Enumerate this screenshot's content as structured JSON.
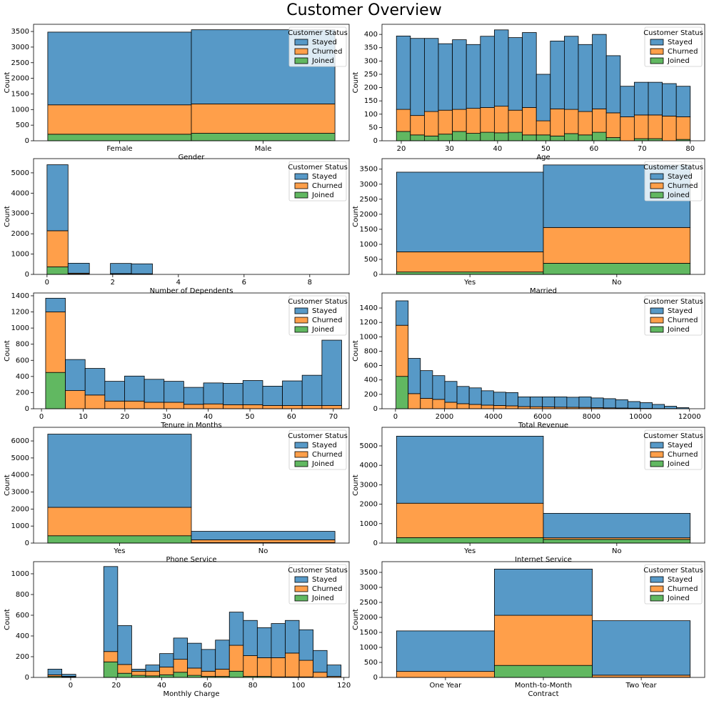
{
  "title": "Customer Overview",
  "chart_data": [
    {
      "type": "bar",
      "xlabel": "Gender",
      "ylabel": "Count",
      "legend_title": "Customer Status",
      "legend": "upper right",
      "stacked": true,
      "categories": [
        "Female",
        "Male"
      ],
      "series": [
        {
          "name": "Stayed",
          "color": "#5799c7",
          "values": [
            2330,
            2375
          ]
        },
        {
          "name": "Churned",
          "color": "#ff9f4a",
          "values": [
            940,
            940
          ]
        },
        {
          "name": "Joined",
          "color": "#61b861",
          "values": [
            210,
            240
          ]
        }
      ],
      "ylim": [
        0,
        3730
      ],
      "yticks": [
        0,
        500,
        1000,
        1500,
        2000,
        2500,
        3000,
        3500
      ]
    },
    {
      "type": "histogram",
      "xlabel": "Age",
      "ylabel": "Count",
      "legend_title": "Customer Status",
      "legend": "upper right",
      "stacked": true,
      "bins": [
        19,
        21.9,
        24.81,
        27.71,
        30.62,
        33.52,
        36.43,
        39.33,
        42.24,
        45.14,
        48.05,
        50.95,
        53.86,
        56.76,
        59.67,
        62.57,
        65.48,
        68.38,
        71.29,
        74.19,
        77.1,
        80
      ],
      "series": [
        {
          "name": "Stayed",
          "color": "#5799c7",
          "values": [
            276,
            290,
            275,
            250,
            262,
            240,
            268,
            287,
            273,
            282,
            175,
            255,
            275,
            252,
            280,
            215,
            115,
            123,
            123,
            122,
            115
          ]
        },
        {
          "name": "Churned",
          "color": "#ff9f4a",
          "values": [
            83,
            73,
            92,
            90,
            83,
            94,
            93,
            100,
            83,
            103,
            53,
            102,
            91,
            88,
            88,
            93,
            90,
            89,
            89,
            93,
            85
          ]
        },
        {
          "name": "Joined",
          "color": "#61b861",
          "values": [
            35,
            22,
            18,
            25,
            35,
            28,
            32,
            30,
            32,
            22,
            22,
            18,
            27,
            22,
            32,
            12,
            0,
            8,
            8,
            0,
            5
          ]
        }
      ],
      "xlim": [
        16,
        83
      ],
      "xticks": [
        20,
        30,
        40,
        50,
        60,
        70,
        80
      ],
      "ylim": [
        0,
        438
      ],
      "yticks": [
        0,
        50,
        100,
        150,
        200,
        250,
        300,
        350,
        400
      ]
    },
    {
      "type": "histogram",
      "xlabel": "Number of Dependents",
      "ylabel": "Count",
      "legend_title": "Customer Status",
      "legend": "upper right",
      "stacked": true,
      "bins": [
        0,
        0.64,
        1.29,
        1.93,
        2.57,
        3.21,
        3.86,
        4.5,
        5.14,
        5.79,
        6.43,
        7.07,
        7.71,
        8.36,
        9
      ],
      "series": [
        {
          "name": "Stayed",
          "color": "#5799c7",
          "values": [
            3250,
            490,
            0,
            500,
            490,
            0,
            0,
            0,
            0,
            0,
            0,
            0,
            0,
            0
          ]
        },
        {
          "name": "Churned",
          "color": "#ff9f4a",
          "values": [
            1780,
            40,
            0,
            25,
            20,
            0,
            0,
            0,
            0,
            0,
            0,
            0,
            0,
            0
          ]
        },
        {
          "name": "Joined",
          "color": "#61b861",
          "values": [
            370,
            20,
            0,
            15,
            10,
            0,
            0,
            0,
            0,
            0,
            0,
            0,
            0,
            0
          ]
        }
      ],
      "xlim": [
        -0.41,
        9.2
      ],
      "xticks": [
        0,
        2,
        4,
        6,
        8
      ],
      "ylim": [
        0,
        5700
      ],
      "yticks": [
        0,
        1000,
        2000,
        3000,
        4000,
        5000
      ]
    },
    {
      "type": "bar",
      "xlabel": "Married",
      "ylabel": "Count",
      "legend_title": "Customer Status",
      "legend": "upper right",
      "stacked": true,
      "categories": [
        "Yes",
        "No"
      ],
      "series": [
        {
          "name": "Stayed",
          "color": "#5799c7",
          "values": [
            2650,
            2080
          ]
        },
        {
          "name": "Churned",
          "color": "#ff9f4a",
          "values": [
            670,
            1190
          ]
        },
        {
          "name": "Joined",
          "color": "#61b861",
          "values": [
            80,
            370
          ]
        }
      ],
      "ylim": [
        0,
        3850
      ],
      "yticks": [
        0,
        500,
        1000,
        1500,
        2000,
        2500,
        3000,
        3500
      ]
    },
    {
      "type": "histogram",
      "xlabel": "Tenure in Months",
      "ylabel": "Count",
      "legend_title": "Customer Status",
      "legend": "upper right",
      "stacked": true,
      "bins": [
        1,
        5.73,
        10.47,
        15.2,
        19.93,
        24.67,
        29.4,
        34.13,
        38.87,
        43.6,
        48.33,
        53.07,
        57.8,
        62.53,
        67.27,
        72
      ],
      "series": [
        {
          "name": "Stayed",
          "color": "#5799c7",
          "values": [
            170,
            385,
            330,
            245,
            310,
            285,
            260,
            210,
            260,
            265,
            300,
            240,
            305,
            375,
            810
          ]
        },
        {
          "name": "Churned",
          "color": "#ff9f4a",
          "values": [
            750,
            225,
            170,
            95,
            95,
            80,
            80,
            55,
            60,
            50,
            50,
            40,
            40,
            40,
            40
          ]
        },
        {
          "name": "Joined",
          "color": "#61b861",
          "values": [
            450,
            0,
            0,
            0,
            0,
            0,
            0,
            0,
            0,
            0,
            0,
            0,
            0,
            0,
            0
          ]
        }
      ],
      "xlim": [
        -1.9,
        73.8
      ],
      "xticks": [
        0,
        10,
        20,
        30,
        40,
        50,
        60,
        70
      ],
      "ylim": [
        0,
        1435
      ],
      "yticks": [
        0,
        200,
        400,
        600,
        800,
        1000,
        1200,
        1400
      ]
    },
    {
      "type": "histogram",
      "xlabel": "Total Revenue",
      "ylabel": "Count",
      "legend_title": "Customer Status",
      "legend": "upper right",
      "stacked": true,
      "bins": [
        21,
        519,
        1017,
        1515,
        2013,
        2511,
        3009,
        3507,
        4005,
        4503,
        5001,
        5499,
        5997,
        6495,
        6993,
        7491,
        7989,
        8487,
        8985,
        9483,
        9981,
        10479,
        10977,
        11475,
        11973
      ],
      "series": [
        {
          "name": "Stayed",
          "color": "#5799c7",
          "values": [
            340,
            490,
            385,
            330,
            290,
            240,
            230,
            200,
            185,
            185,
            135,
            137,
            140,
            143,
            140,
            147,
            135,
            128,
            115,
            92,
            80,
            57,
            33,
            15
          ]
        },
        {
          "name": "Churned",
          "color": "#ff9f4a",
          "values": [
            710,
            210,
            145,
            130,
            90,
            70,
            60,
            50,
            45,
            40,
            30,
            28,
            25,
            22,
            20,
            18,
            15,
            12,
            10,
            8,
            5,
            3,
            2,
            0
          ]
        },
        {
          "name": "Joined",
          "color": "#61b861",
          "values": [
            450,
            0,
            0,
            0,
            0,
            0,
            0,
            0,
            0,
            0,
            0,
            0,
            0,
            0,
            0,
            0,
            0,
            0,
            0,
            0,
            0,
            0,
            0,
            0
          ]
        }
      ],
      "xlim": [
        -550,
        12620
      ],
      "xticks": [
        0,
        2000,
        4000,
        6000,
        8000,
        10000,
        12000
      ],
      "ylim": [
        0,
        1609
      ],
      "yticks": [
        0,
        200,
        400,
        600,
        800,
        1000,
        1200,
        1400
      ]
    },
    {
      "type": "bar",
      "xlabel": "Phone Service",
      "ylabel": "Count",
      "legend_title": "Customer Status",
      "legend": "upper right",
      "stacked": true,
      "categories": [
        "Yes",
        "No"
      ],
      "series": [
        {
          "name": "Stayed",
          "color": "#5799c7",
          "values": [
            4300,
            500
          ]
        },
        {
          "name": "Churned",
          "color": "#ff9f4a",
          "values": [
            1670,
            160
          ]
        },
        {
          "name": "Joined",
          "color": "#61b861",
          "values": [
            430,
            30
          ]
        }
      ],
      "ylim": [
        0,
        6800
      ],
      "yticks": [
        0,
        1000,
        2000,
        3000,
        4000,
        5000,
        6000
      ]
    },
    {
      "type": "bar",
      "xlabel": "Internet Service",
      "ylabel": "Count",
      "legend_title": "Customer Status",
      "legend": "upper right",
      "stacked": true,
      "categories": [
        "Yes",
        "No"
      ],
      "series": [
        {
          "name": "Stayed",
          "color": "#5799c7",
          "values": [
            3450,
            1260
          ]
        },
        {
          "name": "Churned",
          "color": "#ff9f4a",
          "values": [
            1770,
            80
          ]
        },
        {
          "name": "Joined",
          "color": "#61b861",
          "values": [
            280,
            190
          ]
        }
      ],
      "ylim": [
        0,
        5955
      ],
      "yticks": [
        0,
        1000,
        2000,
        3000,
        4000,
        5000
      ]
    },
    {
      "type": "histogram",
      "xlabel": "Monthly Charge",
      "ylabel": "Count",
      "legend_title": "Customer Status",
      "legend": "upper right",
      "stacked": true,
      "bins": [
        -10,
        -3.87,
        2.26,
        8.39,
        14.52,
        20.65,
        26.79,
        32.92,
        39.05,
        45.18,
        51.31,
        57.44,
        63.57,
        69.7,
        75.83,
        81.96,
        88.1,
        94.23,
        100.36,
        106.49,
        112.62,
        118.75
      ],
      "series": [
        {
          "name": "Stayed",
          "color": "#5799c7",
          "values": [
            55,
            20,
            0,
            0,
            820,
            375,
            20,
            60,
            130,
            205,
            240,
            210,
            280,
            320,
            340,
            290,
            330,
            315,
            295,
            210,
            110
          ]
        },
        {
          "name": "Churned",
          "color": "#ff9f4a",
          "values": [
            15,
            5,
            0,
            0,
            100,
            85,
            40,
            45,
            75,
            125,
            70,
            50,
            70,
            250,
            200,
            180,
            185,
            230,
            160,
            50,
            10
          ]
        },
        {
          "name": "Joined",
          "color": "#61b861",
          "values": [
            10,
            5,
            0,
            0,
            150,
            40,
            20,
            15,
            25,
            50,
            20,
            10,
            10,
            60,
            10,
            10,
            5,
            5,
            5,
            0,
            0
          ]
        }
      ],
      "xlim": [
        -16.3,
        122.3
      ],
      "xticks": [
        0,
        20,
        40,
        60,
        80,
        100,
        120
      ],
      "ylim": [
        0,
        1117
      ],
      "yticks": [
        0,
        200,
        400,
        600,
        800,
        1000
      ]
    },
    {
      "type": "bar",
      "xlabel": "Contract",
      "ylabel": "Count",
      "legend_title": "Customer Status",
      "legend": "upper right",
      "stacked": true,
      "categories": [
        "One Year",
        "Month-to-Month",
        "Two Year"
      ],
      "series": [
        {
          "name": "Stayed",
          "color": "#5799c7",
          "values": [
            1350,
            1540,
            1815
          ]
        },
        {
          "name": "Churned",
          "color": "#ff9f4a",
          "values": [
            200,
            1670,
            70
          ]
        },
        {
          "name": "Joined",
          "color": "#61b861",
          "values": [
            0,
            400,
            5
          ]
        }
      ],
      "ylim": [
        0,
        3857
      ],
      "yticks": [
        0,
        500,
        1000,
        1500,
        2000,
        2500,
        3000,
        3500
      ]
    }
  ]
}
